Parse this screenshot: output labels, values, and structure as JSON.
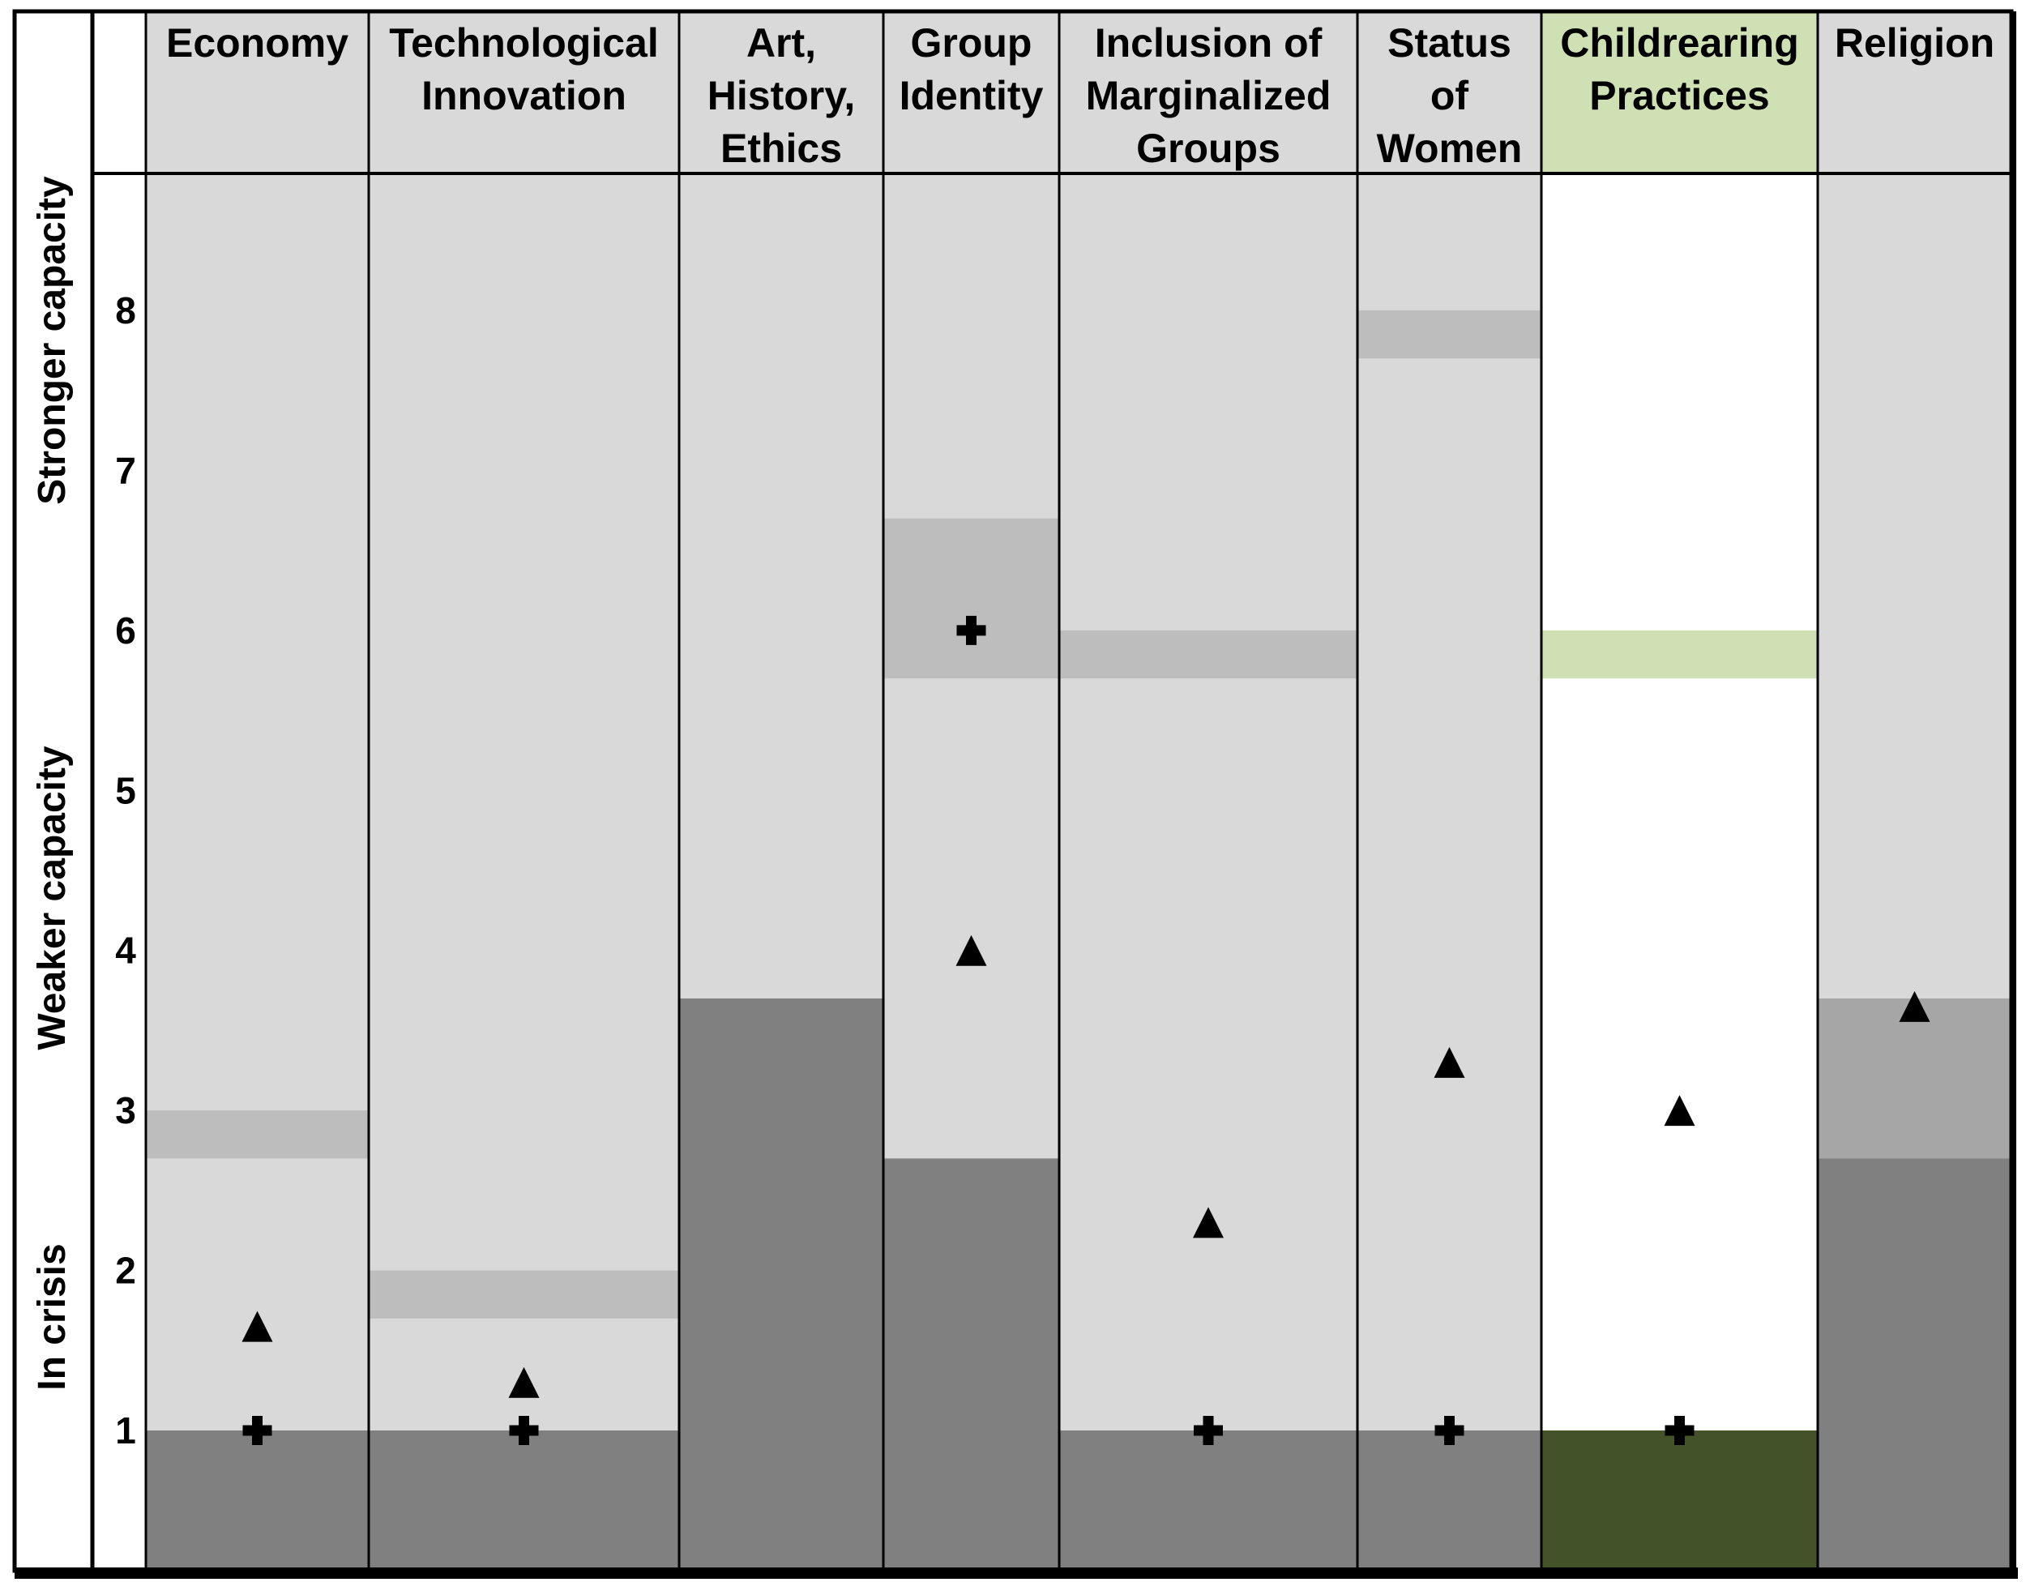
{
  "chart_data": {
    "type": "table",
    "title": "",
    "side_labels": [
      "Stronger capacity",
      "Weaker capacity",
      "In crisis"
    ],
    "y_ticks": [
      "1",
      "2",
      "3",
      "4",
      "5",
      "6",
      "7",
      "8"
    ],
    "ylim": [
      0,
      9
    ],
    "colors": {
      "light": "#d9d9d9",
      "band": "#bdbdbd",
      "dark": "#808080",
      "mid": "#a6a6a6",
      "highlight_header": "#cfe0b4",
      "highlight_band": "#cfe0b4",
      "highlight_dark": "#435229",
      "highlight_body": "#ffffff"
    },
    "columns": [
      {
        "name": "Economy",
        "header_lines": [
          "Economy"
        ],
        "highlight": false,
        "bands": [
          [
            2.7,
            3.0
          ]
        ],
        "dark_top": 1.0,
        "mid_top": null,
        "triangle": 1.65,
        "plus": 1.0
      },
      {
        "name": "Technological Innovation",
        "header_lines": [
          "Technological",
          "Innovation"
        ],
        "highlight": false,
        "bands": [
          [
            1.7,
            2.0
          ]
        ],
        "dark_top": 1.0,
        "mid_top": null,
        "triangle": 1.3,
        "plus": 1.0
      },
      {
        "name": "Art, History, Ethics",
        "header_lines": [
          "Art,",
          "History,",
          "Ethics"
        ],
        "highlight": false,
        "bands": [],
        "dark_top": 3.7,
        "mid_top": null,
        "triangle": null,
        "plus": null
      },
      {
        "name": "Group Identity",
        "header_lines": [
          "Group",
          "Identity"
        ],
        "highlight": false,
        "bands": [
          [
            5.7,
            6.7
          ]
        ],
        "dark_top": 2.7,
        "mid_top": null,
        "triangle": 4.0,
        "plus": 6.0
      },
      {
        "name": "Inclusion of Marginalized Groups",
        "header_lines": [
          "Inclusion of",
          "Marginalized",
          "Groups"
        ],
        "highlight": false,
        "bands": [
          [
            5.7,
            6.0
          ]
        ],
        "dark_top": 1.0,
        "mid_top": null,
        "triangle": 2.3,
        "plus": 1.0
      },
      {
        "name": "Status of Women",
        "header_lines": [
          "Status",
          "of",
          "Women"
        ],
        "highlight": false,
        "bands": [
          [
            7.7,
            8.0
          ]
        ],
        "dark_top": 1.0,
        "mid_top": null,
        "triangle": 3.3,
        "plus": 1.0
      },
      {
        "name": "Childrearing Practices",
        "header_lines": [
          "Childrearing",
          "Practices"
        ],
        "highlight": true,
        "bands": [
          [
            5.7,
            6.0
          ]
        ],
        "dark_top": 1.0,
        "mid_top": null,
        "triangle": 3.0,
        "plus": 1.0
      },
      {
        "name": "Religion",
        "header_lines": [
          "Religion"
        ],
        "highlight": false,
        "bands": [],
        "dark_top": 2.7,
        "mid_top": 3.7,
        "triangle": 3.65,
        "plus": null
      }
    ]
  }
}
